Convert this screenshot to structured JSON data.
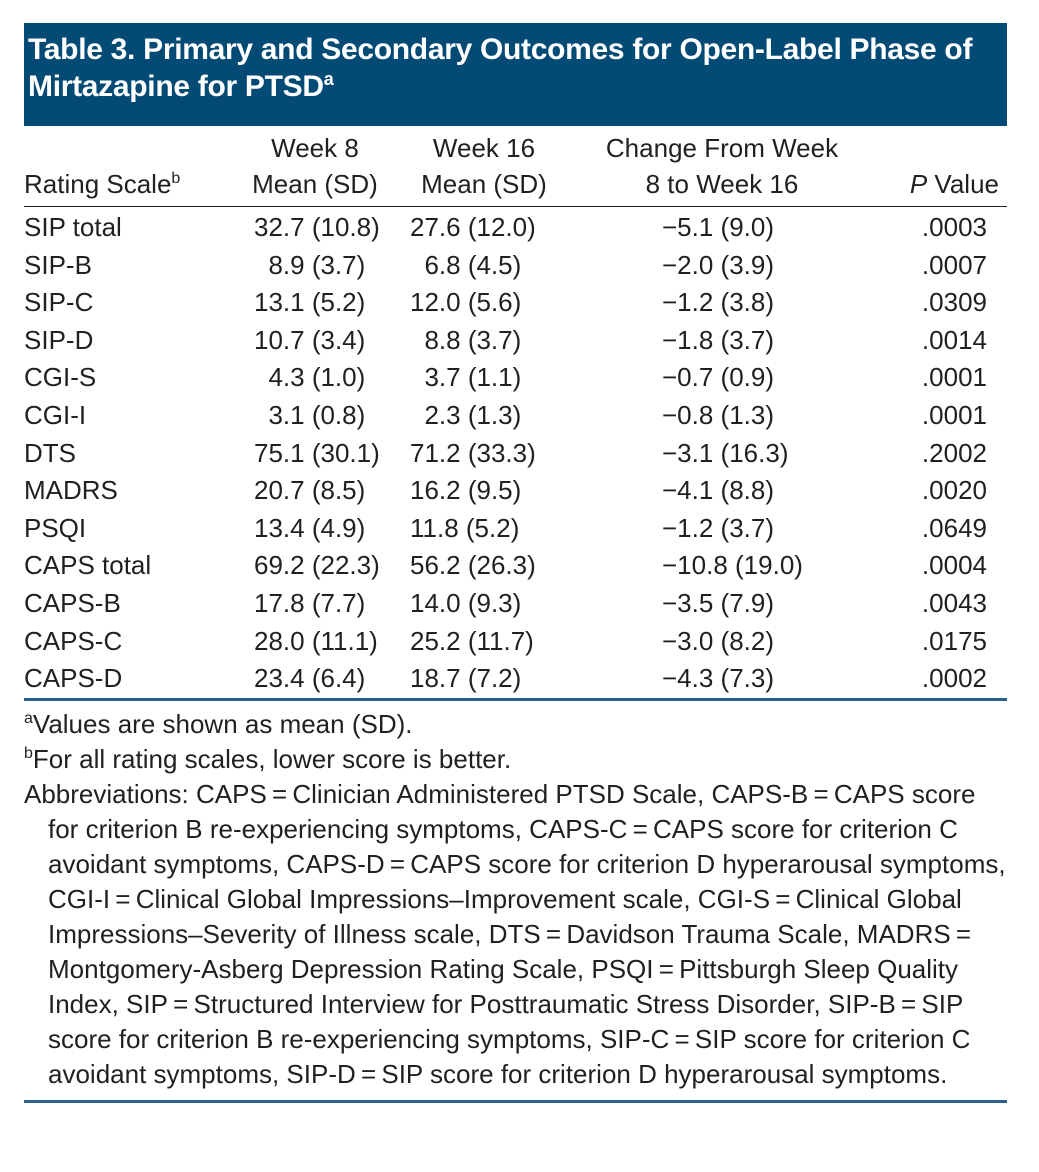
{
  "title": {
    "text": "Table 3. Primary and Secondary Outcomes for Open-Label Phase of Mirtazapine for PTSD",
    "footnote_marker": "a"
  },
  "columns": {
    "scale": {
      "label": "Rating Scale",
      "footnote_marker": "b"
    },
    "week8": {
      "line1": "Week 8",
      "line2": "Mean (SD)"
    },
    "week16": {
      "line1": "Week 16",
      "line2": "Mean (SD)"
    },
    "change": {
      "line1": "Change From Week",
      "line2": "8 to Week 16"
    },
    "pvalue": {
      "italic": "P",
      "rest": " Value"
    }
  },
  "rows": [
    {
      "scale": "SIP total",
      "week8": "32.7 (10.8)",
      "week16": "27.6 (12.0)",
      "change": "−5.1 (9.0)",
      "p": ".0003"
    },
    {
      "scale": "SIP-B",
      "week8": "  8.9 (3.7)",
      "week16": "  6.8 (4.5)",
      "change": "−2.0 (3.9)",
      "p": ".0007"
    },
    {
      "scale": "SIP-C",
      "week8": "13.1 (5.2)",
      "week16": "12.0 (5.6)",
      "change": "−1.2 (3.8)",
      "p": ".0309"
    },
    {
      "scale": "SIP-D",
      "week8": "10.7 (3.4)",
      "week16": "  8.8 (3.7)",
      "change": "−1.8 (3.7)",
      "p": ".0014"
    },
    {
      "scale": "CGI-S",
      "week8": "  4.3 (1.0)",
      "week16": "  3.7 (1.1)",
      "change": "−0.7 (0.9)",
      "p": ".0001"
    },
    {
      "scale": "CGI-I",
      "week8": "  3.1 (0.8)",
      "week16": "  2.3 (1.3)",
      "change": "−0.8 (1.3)",
      "p": ".0001"
    },
    {
      "scale": "DTS",
      "week8": "75.1 (30.1)",
      "week16": "71.2 (33.3)",
      "change": "−3.1 (16.3)",
      "p": ".2002"
    },
    {
      "scale": "MADRS",
      "week8": "20.7 (8.5)",
      "week16": "16.2 (9.5)",
      "change": "−4.1 (8.8)",
      "p": ".0020"
    },
    {
      "scale": "PSQI",
      "week8": "13.4 (4.9)",
      "week16": "11.8 (5.2)",
      "change": "−1.2 (3.7)",
      "p": ".0649"
    },
    {
      "scale": "CAPS total",
      "week8": "69.2 (22.3)",
      "week16": "56.2 (26.3)",
      "change": "−10.8 (19.0)",
      "p": ".0004"
    },
    {
      "scale": "CAPS-B",
      "week8": "17.8 (7.7)",
      "week16": "14.0 (9.3)",
      "change": "−3.5 (7.9)",
      "p": ".0043"
    },
    {
      "scale": "CAPS-C",
      "week8": "28.0 (11.1)",
      "week16": "25.2 (11.7)",
      "change": "−3.0 (8.2)",
      "p": ".0175"
    },
    {
      "scale": "CAPS-D",
      "week8": "23.4 (6.4)",
      "week16": "18.7 (7.2)",
      "change": "−4.3 (7.3)",
      "p": ".0002"
    }
  ],
  "notes": {
    "a": {
      "marker": "a",
      "text": "Values are shown as mean (SD)."
    },
    "b": {
      "marker": "b",
      "text": "For all rating scales, lower score is better."
    },
    "abbreviations": "Abbreviations: CAPS = Clinician Administered PTSD Scale, CAPS-B = CAPS score for criterion B re-experiencing symptoms, CAPS-C = CAPS score for criterion C avoidant symptoms, CAPS-D = CAPS score for criterion D hyperarousal symptoms, CGI-I = Clinical Global Impressions–Improvement scale, CGI-S = Clinical Global Impressions–Severity of Illness scale, DTS = Davidson Trauma Scale, MADRS = Montgomery-Asberg Depression Rating Scale, PSQI = Pittsburgh Sleep Quality Index, SIP = Structured Interview for Posttraumatic Stress Disorder, SIP-B = SIP score for criterion B re-experiencing symptoms, SIP-C = SIP score for criterion C avoidant symptoms, SIP-D = SIP score for criterion D hyperarousal symptoms."
  },
  "colors": {
    "title_bg": "#034a74",
    "title_text": "#ffffff",
    "rule_blue": "#2a5f8e",
    "text": "#231f20"
  }
}
